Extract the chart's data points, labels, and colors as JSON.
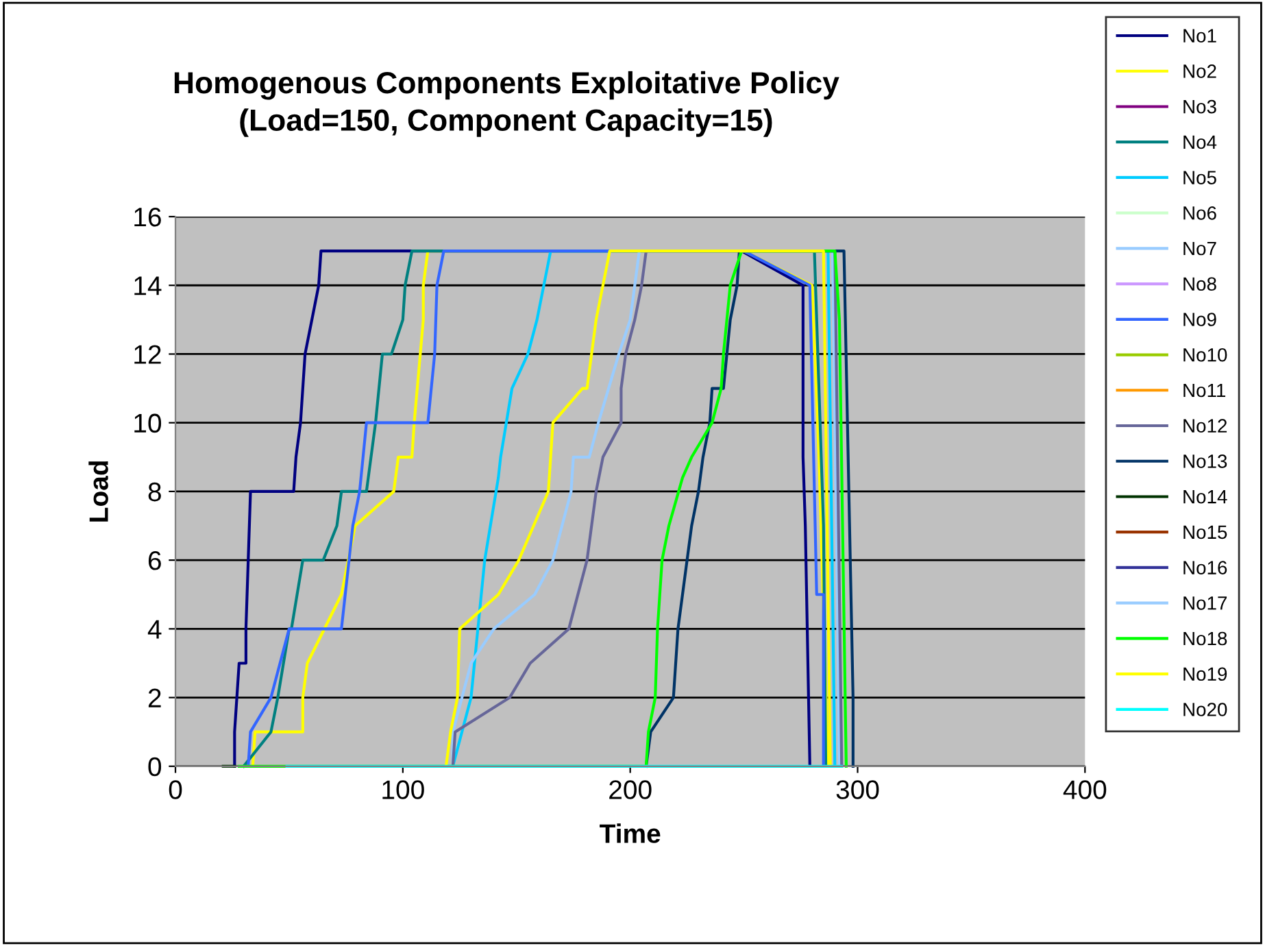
{
  "chart_data": {
    "type": "line",
    "title": "Homogenous Components Exploitative Policy\n(Load=150, Component Capacity=15)",
    "xlabel": "Time",
    "ylabel": "Load",
    "xlim": [
      0,
      400
    ],
    "xticks": [
      0,
      100,
      200,
      300,
      400
    ],
    "ylim": [
      0,
      16
    ],
    "yticks": [
      0,
      2,
      4,
      6,
      8,
      10,
      12,
      14,
      16
    ],
    "grid": "y",
    "legend": "right",
    "marker": "none",
    "line_style": "solid",
    "series": [
      {
        "name": "No1",
        "color": "#000080",
        "x": [
          26,
          26,
          28,
          31,
          31,
          32,
          33,
          36,
          52,
          53,
          55,
          57,
          63,
          64,
          249,
          276,
          276,
          277,
          279
        ],
        "values": [
          0,
          1,
          3,
          3,
          4,
          6,
          8,
          8,
          8,
          9,
          10,
          12,
          14,
          15,
          15,
          14,
          9,
          7,
          0
        ]
      },
      {
        "name": "No2",
        "color": "#ffff00",
        "x": [
          34,
          35,
          56,
          56,
          58,
          73,
          79,
          96,
          98,
          104,
          105,
          109,
          109,
          111,
          250,
          280,
          283,
          287
        ],
        "values": [
          0,
          1,
          1,
          2,
          3,
          5,
          7,
          8,
          9,
          9,
          10,
          13,
          14,
          15,
          15,
          14,
          9,
          0
        ]
      },
      {
        "name": "No3",
        "color": "#800080"
      },
      {
        "name": "No4",
        "color": "#008080",
        "x": [
          30,
          42,
          45,
          50,
          51,
          56,
          65,
          71,
          73,
          84,
          88,
          91,
          95,
          100,
          101,
          104,
          281,
          285,
          286
        ],
        "values": [
          0,
          1,
          2,
          4,
          4,
          6,
          6,
          7,
          8,
          8,
          10,
          12,
          12,
          13,
          14,
          15,
          15,
          7,
          0
        ]
      },
      {
        "name": "No5",
        "color": "#00ccff",
        "x": [
          122,
          130,
          133,
          136,
          142,
          143,
          148,
          155,
          159,
          165,
          287,
          290
        ],
        "values": [
          0,
          2,
          4,
          6,
          8.4,
          9,
          11,
          12,
          13,
          15,
          15,
          0
        ]
      },
      {
        "name": "No6",
        "color": "#ccffcc"
      },
      {
        "name": "No7",
        "color": "#99ccff",
        "x": [
          122,
          122,
          130,
          140,
          158,
          166,
          174,
          175,
          182,
          186,
          195,
          200,
          204,
          289,
          292
        ],
        "values": [
          0,
          1,
          3,
          4,
          5,
          6,
          8,
          9,
          9,
          10,
          12,
          13,
          15,
          15,
          0
        ]
      },
      {
        "name": "No8",
        "color": "#cc99ff"
      },
      {
        "name": "No9",
        "color": "#3366ff",
        "x": [
          32,
          33,
          42,
          50,
          73,
          78,
          81,
          84,
          111,
          114,
          115,
          118,
          250,
          279,
          282,
          285,
          285
        ],
        "values": [
          0,
          1,
          2,
          4,
          4,
          7,
          8,
          10,
          10,
          12,
          14,
          15,
          15,
          14,
          5,
          5,
          0
        ]
      },
      {
        "name": "No10",
        "color": "#99cc00"
      },
      {
        "name": "No11",
        "color": "#ff9900"
      },
      {
        "name": "No12",
        "color": "#666699",
        "x": [
          122,
          123,
          147,
          156,
          173,
          181,
          185,
          188,
          196,
          196,
          198,
          202,
          205,
          207,
          290,
          293
        ],
        "values": [
          0,
          1,
          2,
          3,
          4,
          6,
          8,
          9,
          10,
          11,
          12,
          13,
          14,
          15,
          15,
          0
        ]
      },
      {
        "name": "No13",
        "color": "#003366",
        "x": [
          207,
          209,
          219,
          221,
          225,
          227,
          230,
          232,
          235,
          236,
          241,
          244,
          247,
          248,
          294,
          298,
          298
        ],
        "values": [
          0,
          1,
          2,
          4,
          6,
          7,
          8,
          9,
          10,
          11,
          11,
          13,
          14,
          15,
          15,
          2,
          0
        ]
      },
      {
        "name": "No14",
        "color": "#003300",
        "x": [
          21,
          26
        ],
        "values": [
          0,
          0
        ]
      },
      {
        "name": "No15",
        "color": "#993300"
      },
      {
        "name": "No16",
        "color": "#333399"
      },
      {
        "name": "No17",
        "color": "#99ccff"
      },
      {
        "name": "No18",
        "color": "#00ff00",
        "x": [
          28,
          207,
          208,
          211,
          212,
          214,
          217,
          223,
          227,
          236,
          240,
          241,
          244,
          249,
          290,
          292,
          295
        ],
        "values": [
          0,
          0,
          1,
          2,
          4,
          6,
          7,
          8.4,
          9,
          10,
          11,
          12,
          14,
          15,
          15,
          13,
          0
        ]
      },
      {
        "name": "No19",
        "color": "#ffff00",
        "x": [
          119,
          121,
          124,
          125,
          142,
          151,
          164,
          166,
          179,
          181,
          185,
          191,
          285,
          288
        ],
        "values": [
          0,
          1,
          2,
          4,
          5,
          6,
          8,
          10,
          11,
          11,
          13,
          15,
          15,
          0
        ]
      },
      {
        "name": "No20",
        "color": "#00ffff",
        "x": [
          49,
          293
        ],
        "values": [
          0,
          0
        ]
      }
    ]
  }
}
